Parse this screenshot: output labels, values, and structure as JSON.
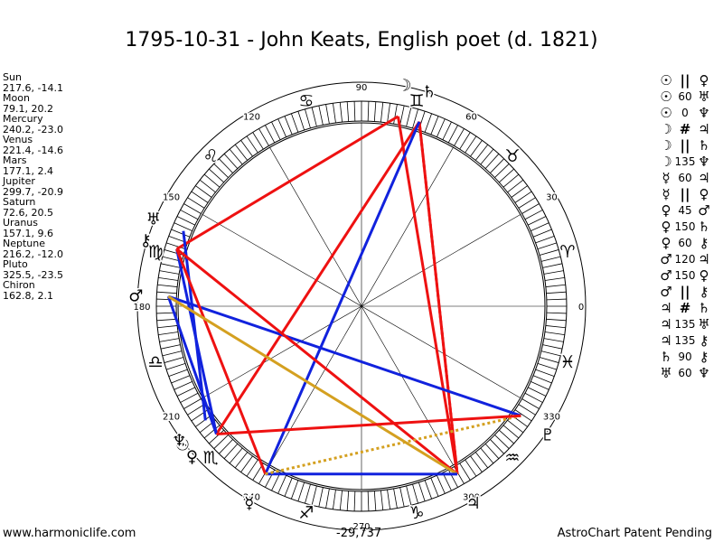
{
  "title": "1795-10-31 - John Keats, English poet (d. 1821)",
  "footer": {
    "left": "www.harmoniclife.com",
    "middle": "-29,737",
    "right": "AstroChart Patent Pending"
  },
  "planets": [
    {
      "name": "Sun",
      "coords": "217.6, -14.1",
      "glyph": "☉"
    },
    {
      "name": "Moon",
      "coords": "79.1, 20.2",
      "glyph": "☽"
    },
    {
      "name": "Mercury",
      "coords": "240.2, -23.0",
      "glyph": "☿"
    },
    {
      "name": "Venus",
      "coords": "221.4, -14.6",
      "glyph": "♀"
    },
    {
      "name": "Mars",
      "coords": "177.1, 2.4",
      "glyph": "♂"
    },
    {
      "name": "Jupiter",
      "coords": "299.7, -20.9",
      "glyph": "♃"
    },
    {
      "name": "Saturn",
      "coords": "72.6, 20.5",
      "glyph": "♄"
    },
    {
      "name": "Uranus",
      "coords": "157.1, 9.6",
      "glyph": "♅"
    },
    {
      "name": "Neptune",
      "coords": "216.2, -12.0",
      "glyph": "♆"
    },
    {
      "name": "Pluto",
      "coords": "325.5, -23.5",
      "glyph": "♇"
    },
    {
      "name": "Chiron",
      "coords": "162.8, 2.1",
      "glyph": "⚷"
    }
  ],
  "aspects": [
    {
      "p1": "☉",
      "aspect": "||",
      "p2": "♀"
    },
    {
      "p1": "☉",
      "aspect": "60",
      "p2": "♅"
    },
    {
      "p1": "☉",
      "aspect": "0",
      "p2": "♆"
    },
    {
      "p1": "☽",
      "aspect": "#",
      "p2": "♃"
    },
    {
      "p1": "☽",
      "aspect": "||",
      "p2": "♄"
    },
    {
      "p1": "☽",
      "aspect": "135",
      "p2": "♆"
    },
    {
      "p1": "☿",
      "aspect": "60",
      "p2": "♃"
    },
    {
      "p1": "☿",
      "aspect": "||",
      "p2": "♀"
    },
    {
      "p1": "♀",
      "aspect": "45",
      "p2": "♂"
    },
    {
      "p1": "♀",
      "aspect": "150",
      "p2": "♄"
    },
    {
      "p1": "♀",
      "aspect": "60",
      "p2": "⚷"
    },
    {
      "p1": "♂",
      "aspect": "120",
      "p2": "♃"
    },
    {
      "p1": "♂",
      "aspect": "150",
      "p2": "♀"
    },
    {
      "p1": "♂",
      "aspect": "||",
      "p2": "⚷"
    },
    {
      "p1": "♃",
      "aspect": "#",
      "p2": "♄"
    },
    {
      "p1": "♃",
      "aspect": "135",
      "p2": "♅"
    },
    {
      "p1": "♃",
      "aspect": "135",
      "p2": "⚷"
    },
    {
      "p1": "♄",
      "aspect": "90",
      "p2": "⚷"
    },
    {
      "p1": "♅",
      "aspect": "60",
      "p2": "♆"
    }
  ],
  "degree_labels": [
    {
      "deg": 0,
      "label": "0"
    },
    {
      "deg": 30,
      "label": "30"
    },
    {
      "deg": 60,
      "label": "60"
    },
    {
      "deg": 90,
      "label": "90"
    },
    {
      "deg": 120,
      "label": "120"
    },
    {
      "deg": 150,
      "label": "150"
    },
    {
      "deg": 180,
      "label": "180"
    },
    {
      "deg": 210,
      "label": "210"
    },
    {
      "deg": 240,
      "label": "240"
    },
    {
      "deg": 270,
      "label": "270"
    },
    {
      "deg": 300,
      "label": "300"
    },
    {
      "deg": 330,
      "label": "330"
    }
  ],
  "zodiac_signs": [
    {
      "deg": 15,
      "glyph": "♈",
      "name": "aries"
    },
    {
      "deg": 45,
      "glyph": "♉",
      "name": "taurus"
    },
    {
      "deg": 75,
      "glyph": "♊",
      "name": "gemini"
    },
    {
      "deg": 105,
      "glyph": "♋",
      "name": "cancer"
    },
    {
      "deg": 135,
      "glyph": "♌",
      "name": "leo"
    },
    {
      "deg": 165,
      "glyph": "♍",
      "name": "virgo"
    },
    {
      "deg": 195,
      "glyph": "♎",
      "name": "libra"
    },
    {
      "deg": 225,
      "glyph": "♏",
      "name": "scorpio"
    },
    {
      "deg": 255,
      "glyph": "♐",
      "name": "sagittarius"
    },
    {
      "deg": 285,
      "glyph": "♑",
      "name": "capricorn"
    },
    {
      "deg": 315,
      "glyph": "♒",
      "name": "aquarius"
    },
    {
      "deg": 345,
      "glyph": "♓",
      "name": "pisces"
    }
  ],
  "chart_planets": [
    {
      "name": "sun",
      "glyph": "☉",
      "lon": 217.6
    },
    {
      "name": "moon",
      "glyph": "☽",
      "lon": 79.1
    },
    {
      "name": "mercury",
      "glyph": "☿",
      "lon": 240.2
    },
    {
      "name": "venus",
      "glyph": "♀",
      "lon": 221.4
    },
    {
      "name": "mars",
      "glyph": "♂",
      "lon": 177.1
    },
    {
      "name": "jupiter",
      "glyph": "♃",
      "lon": 299.7
    },
    {
      "name": "saturn",
      "glyph": "♄",
      "lon": 72.6
    },
    {
      "name": "uranus",
      "glyph": "♅",
      "lon": 157.1
    },
    {
      "name": "neptune",
      "glyph": "♆",
      "lon": 216.2
    },
    {
      "name": "pluto",
      "glyph": "♇",
      "lon": 325.5
    },
    {
      "name": "chiron",
      "glyph": "⚷",
      "lon": 162.8
    }
  ],
  "aspect_lines": [
    {
      "a": 72.6,
      "b": 299.7,
      "color": "#ee1111",
      "style": "solid"
    },
    {
      "a": 79.1,
      "b": 299.7,
      "color": "#ee1111",
      "style": "solid"
    },
    {
      "a": 72.6,
      "b": 299.7,
      "color": "#ee1111",
      "style": "dotted"
    },
    {
      "a": 79.1,
      "b": 162.8,
      "color": "#ee1111",
      "style": "solid"
    },
    {
      "a": 72.6,
      "b": 221.4,
      "color": "#ee1111",
      "style": "solid"
    },
    {
      "a": 72.6,
      "b": 240.2,
      "color": "#1122dd",
      "style": "solid"
    },
    {
      "a": 157.1,
      "b": 216.2,
      "color": "#1122dd",
      "style": "solid"
    },
    {
      "a": 162.8,
      "b": 221.4,
      "color": "#1122dd",
      "style": "solid"
    },
    {
      "a": 177.1,
      "b": 221.4,
      "color": "#1122dd",
      "style": "solid"
    },
    {
      "a": 177.1,
      "b": 325.5,
      "color": "#1122dd",
      "style": "solid"
    },
    {
      "a": 162.8,
      "b": 299.7,
      "color": "#ee1111",
      "style": "solid"
    },
    {
      "a": 162.8,
      "b": 240.2,
      "color": "#ee1111",
      "style": "solid"
    },
    {
      "a": 177.1,
      "b": 299.7,
      "color": "#d4a020",
      "style": "solid"
    },
    {
      "a": 240.2,
      "b": 299.7,
      "color": "#1122dd",
      "style": "solid"
    },
    {
      "a": 240.2,
      "b": 325.5,
      "color": "#d4a020",
      "style": "dotted"
    },
    {
      "a": 221.4,
      "b": 325.5,
      "color": "#ee1111",
      "style": "solid"
    }
  ]
}
